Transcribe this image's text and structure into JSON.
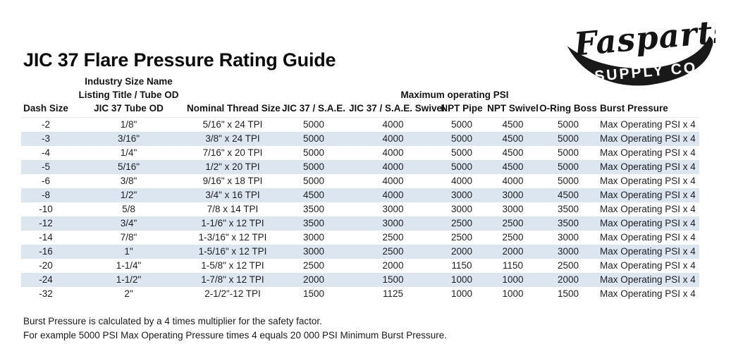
{
  "logo": {
    "brand": "Fasparts",
    "subtitle": "SUPPLY CO."
  },
  "title": "JIC 37 Flare Pressure Rating Guide",
  "table": {
    "group_headers": {
      "industry_line1": "Industry Size Name",
      "industry_line2": "Listing Title / Tube OD",
      "psi_group": "Maximum operating PSI"
    },
    "columns": [
      "Dash Size",
      "JIC 37 Tube OD",
      "Nominal Thread Size",
      "JIC 37 / S.A.E.",
      "JIC 37 / S.A.E. Swivel",
      "NPT Pipe",
      "NPT Swivel",
      "O-Ring Boss",
      "Burst Pressure"
    ],
    "rows": [
      [
        "-2",
        "1/8\"",
        "5/16\" x 24 TPI",
        "5000",
        "4000",
        "5000",
        "4500",
        "5000",
        "Max Operating PSI x 4"
      ],
      [
        "-3",
        "3/16\"",
        "3/8\" x 24 TPI",
        "5000",
        "4000",
        "5000",
        "4500",
        "5000",
        "Max Operating PSI x 4"
      ],
      [
        "-4",
        "1/4\"",
        "7/16\" x 20 TPI",
        "5000",
        "4000",
        "5000",
        "4500",
        "5000",
        "Max Operating PSI x 4"
      ],
      [
        "-5",
        "5/16\"",
        "1/2\" x 20 TPI",
        "5000",
        "4000",
        "5000",
        "4500",
        "5000",
        "Max Operating PSI x 4"
      ],
      [
        "-6",
        "3/8\"",
        "9/16\" x 18 TPI",
        "5000",
        "4000",
        "4000",
        "4000",
        "5000",
        "Max Operating PSI x 4"
      ],
      [
        "-8",
        "1/2\"",
        "3/4\" x 16 TPI",
        "4500",
        "4000",
        "3000",
        "3000",
        "4500",
        "Max Operating PSI x 4"
      ],
      [
        "-10",
        "5/8",
        "7/8 x 14 TPI",
        "3500",
        "3000",
        "3000",
        "3000",
        "3500",
        "Max Operating PSI x 4"
      ],
      [
        "-12",
        "3/4\"",
        "1-1/6\" x 12 TPI",
        "3500",
        "3000",
        "2500",
        "2500",
        "3500",
        "Max Operating PSI x 4"
      ],
      [
        "-14",
        "7/8\"",
        "1-3/16\" x 12 TPI",
        "3000",
        "2500",
        "2500",
        "2500",
        "3000",
        "Max Operating PSI x 4"
      ],
      [
        "-16",
        "1\"",
        "1-5/16\" x 12 TPI",
        "3000",
        "2500",
        "2000",
        "2000",
        "3000",
        "Max Operating PSI x 4"
      ],
      [
        "-20",
        "1-1/4\"",
        "1-5/8\" x 12 TPI",
        "2500",
        "2000",
        "1150",
        "1150",
        "2500",
        "Max Operating PSI x 4"
      ],
      [
        "-24",
        "1-1/2\"",
        "1-7/8\" x 12 TPI",
        "2000",
        "1500",
        "1000",
        "1000",
        "2000",
        "Max Operating PSI x 4"
      ],
      [
        "-32",
        "2\"",
        "2-1/2\"-12 TPI",
        "1500",
        "1125",
        "1000",
        "1000",
        "1500",
        "Max Operating PSI x 4"
      ]
    ]
  },
  "footer": {
    "line1": "Burst Pressure is calculated by a 4 times multiplier for the safety factor.",
    "line2": "For example 5000 PSI Max Operating Pressure times 4 equals 20 000 PSI Minimum Burst Pressure."
  },
  "colors": {
    "row_stripe": "#dce6f1",
    "ink": "#1a1a1a"
  }
}
